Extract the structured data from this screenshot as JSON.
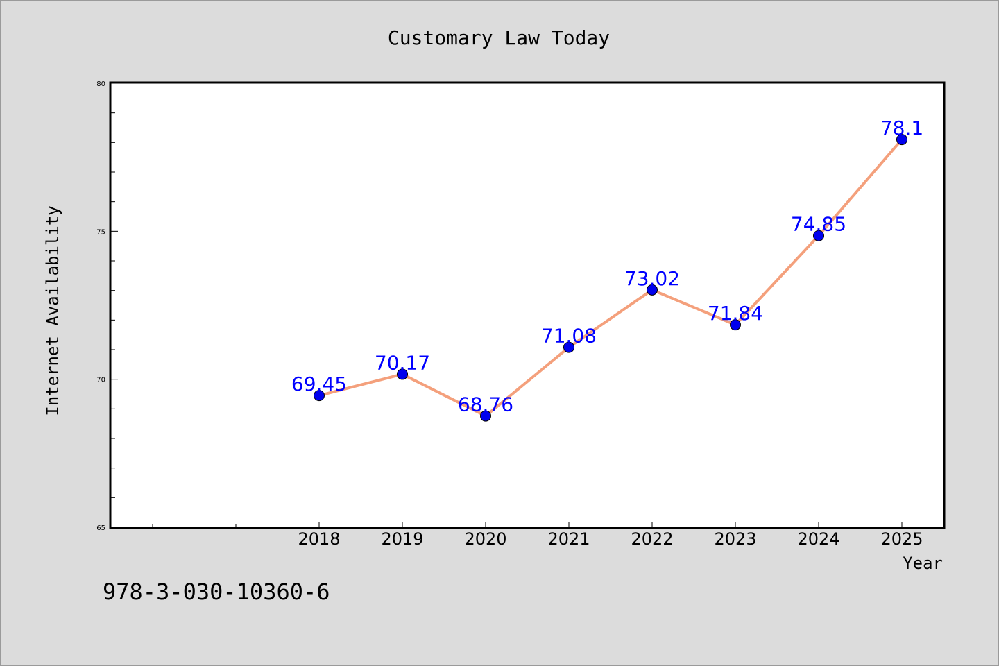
{
  "chart_data": {
    "type": "line",
    "title": "Customary Law Today",
    "xlabel": "Year",
    "ylabel": "Internet Availability",
    "x": [
      2018,
      2019,
      2020,
      2021,
      2022,
      2023,
      2024,
      2025
    ],
    "values": [
      69.45,
      70.17,
      68.76,
      71.08,
      73.02,
      71.84,
      74.85,
      78.1
    ],
    "data_labels": [
      "69.45",
      "70.17",
      "68.76",
      "71.08",
      "73.02",
      "71.84",
      "74.85",
      "78.1"
    ],
    "xlim": [
      2015.5,
      2025.5
    ],
    "ylim": [
      65,
      80
    ],
    "y_ticks": [
      65,
      70,
      75,
      80
    ],
    "y_minor_step": 1,
    "x_extra_minor_ticks": [
      2016,
      2017
    ],
    "grid": false,
    "legend": "none",
    "colors": {
      "line": "#f4a07c",
      "marker": "#0000ee",
      "label": "#0000ff",
      "background": "#dcdcdc",
      "plot_background": "#ffffff"
    }
  },
  "footer": {
    "isbn": "978-3-030-10360-6"
  }
}
